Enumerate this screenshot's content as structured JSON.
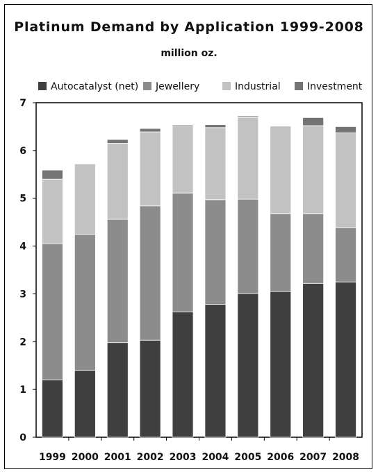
{
  "chart_data": {
    "type": "bar",
    "stacked": true,
    "title": "Platinum Demand by Application 1999-2008",
    "subtitle": "million oz.",
    "xlabel": "",
    "ylabel": "",
    "ylim": [
      0,
      7
    ],
    "yticks": [
      "0",
      "1",
      "2",
      "3",
      "4",
      "5",
      "6",
      "7"
    ],
    "grid": false,
    "legend_position": "top",
    "categories": [
      "1999",
      "2000",
      "2001",
      "2002",
      "2003",
      "2004",
      "2005",
      "2006",
      "2007",
      "2008"
    ],
    "series": [
      {
        "name": "Autocatalyst (net)",
        "color": "#3f3f3f",
        "values": [
          1.2,
          1.4,
          1.98,
          2.03,
          2.62,
          2.78,
          3.01,
          3.05,
          3.22,
          3.25
        ]
      },
      {
        "name": "Jewellery",
        "color": "#8c8c8c",
        "values": [
          2.85,
          2.85,
          2.58,
          2.81,
          2.49,
          2.19,
          1.97,
          1.63,
          1.46,
          1.14
        ]
      },
      {
        "name": "Industrial",
        "color": "#c2c2c2",
        "values": [
          1.35,
          1.47,
          1.59,
          1.55,
          1.41,
          1.51,
          1.71,
          1.83,
          1.84,
          1.98
        ]
      },
      {
        "name": "Investment",
        "color": "#747474",
        "values": [
          0.19,
          0.0,
          0.08,
          0.07,
          0.02,
          0.06,
          0.03,
          0.0,
          0.17,
          0.13
        ]
      }
    ]
  }
}
